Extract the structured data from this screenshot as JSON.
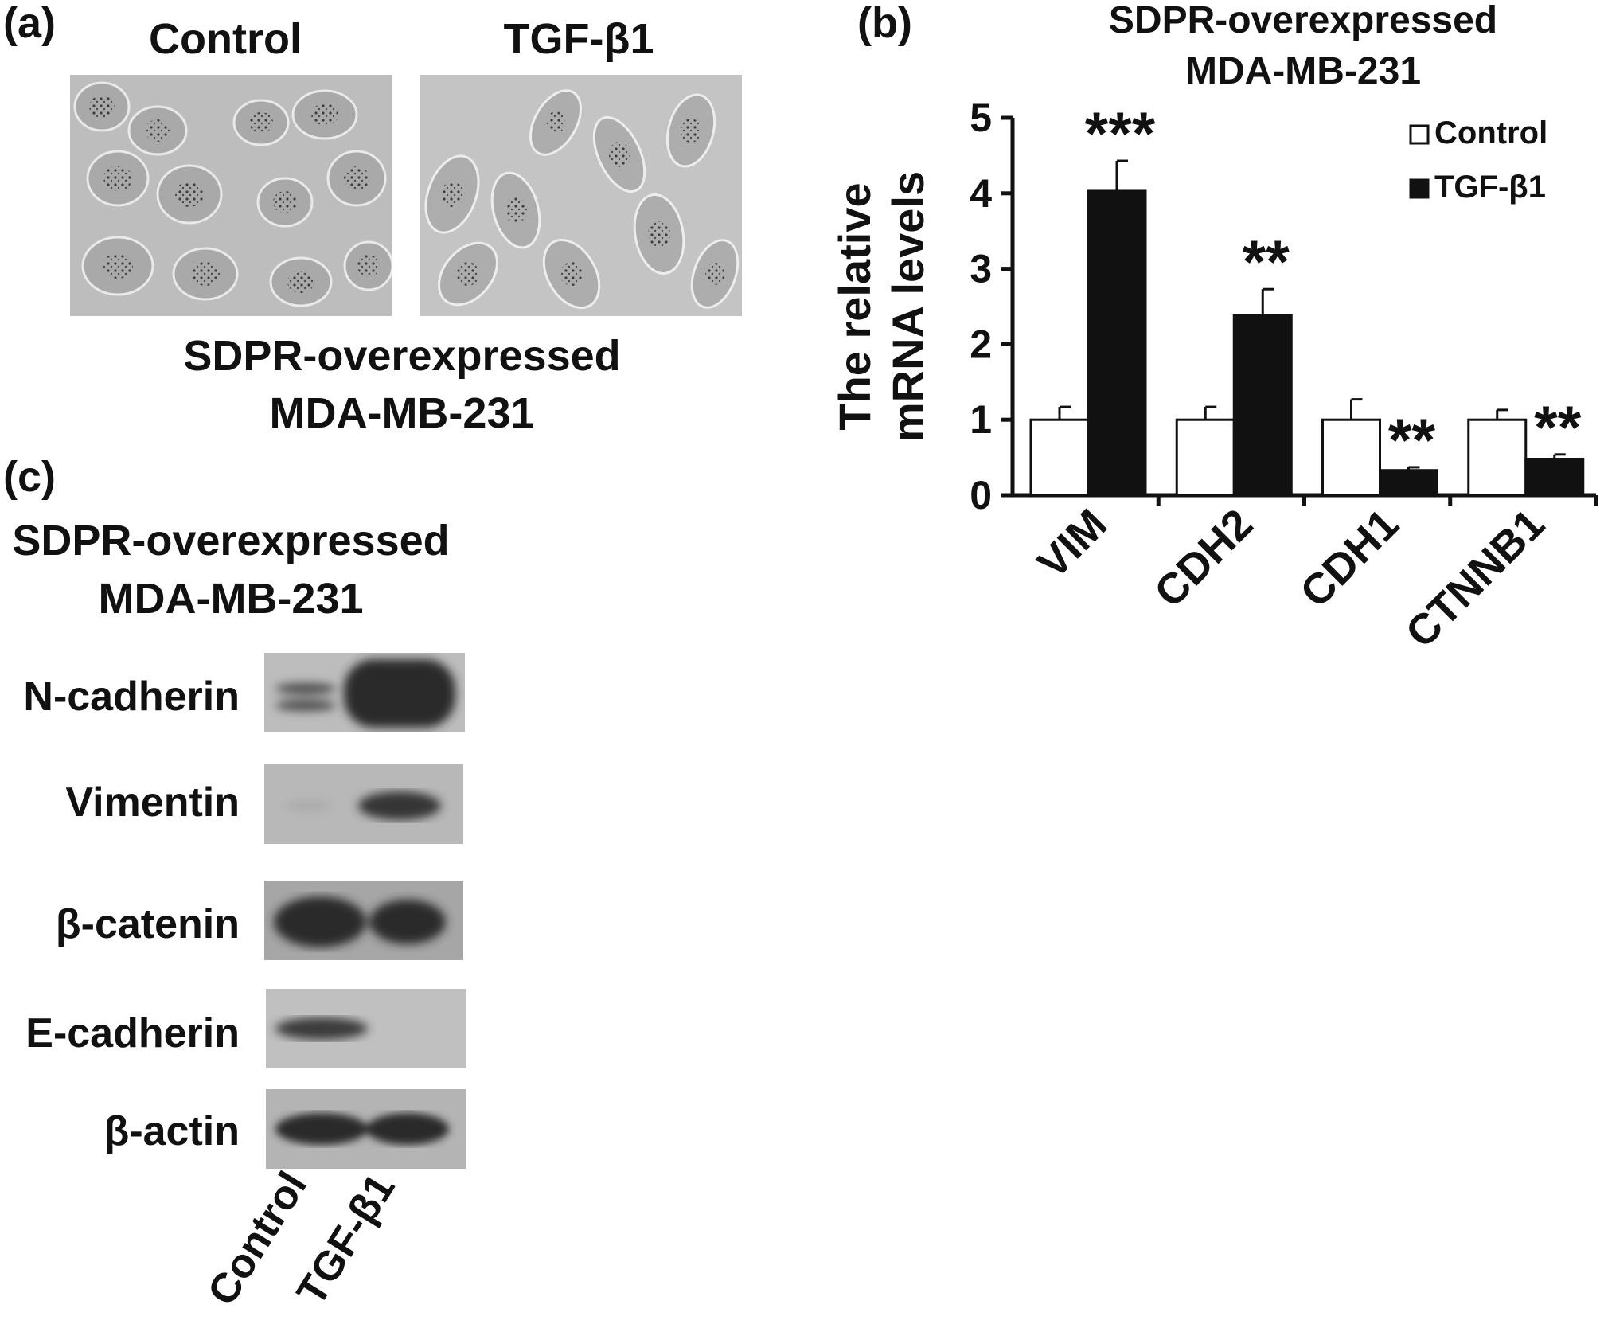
{
  "panel_a": {
    "letter": "(a)",
    "label_left": "Control",
    "label_right": "TGF-β1",
    "caption_line1": "SDPR-overexpressed",
    "caption_line2": "MDA-MB-231"
  },
  "panel_b": {
    "letter": "(b)"
  },
  "panel_c": {
    "letter": "(c)",
    "title_line1": "SDPR-overexpressed",
    "title_line2": "MDA-MB-231",
    "proteins": [
      "N-cadherin",
      "Vimentin",
      "β-catenin",
      "E-cadherin",
      "β-actin"
    ],
    "lanes": [
      "Control",
      "TGF-β1"
    ]
  },
  "chart_data": {
    "type": "bar",
    "title": "SDPR-overexpressed MDA-MB-231",
    "title_line1": "SDPR-overexpressed",
    "title_line2": "MDA-MB-231",
    "ylabel_line1": "The relative",
    "ylabel_line2": "mRNA levels",
    "ylim": [
      0,
      5
    ],
    "yticks": [
      "0",
      "1",
      "2",
      "3",
      "4",
      "5"
    ],
    "categories": [
      "VIM",
      "CDH2",
      "CDH1",
      "CTNNB1"
    ],
    "series": [
      {
        "name": "Control",
        "values": [
          1.0,
          1.0,
          1.0,
          1.0
        ],
        "errors": [
          0.17,
          0.17,
          0.27,
          0.13
        ],
        "color": "#ffffff"
      },
      {
        "name": "TGF-β1",
        "values": [
          4.03,
          2.38,
          0.33,
          0.48
        ],
        "errors": [
          0.4,
          0.35,
          0.04,
          0.06
        ],
        "color": "#111111"
      }
    ],
    "significance": [
      "***",
      "**",
      "**",
      "**"
    ],
    "legend_position": "top-right",
    "grid": false
  }
}
